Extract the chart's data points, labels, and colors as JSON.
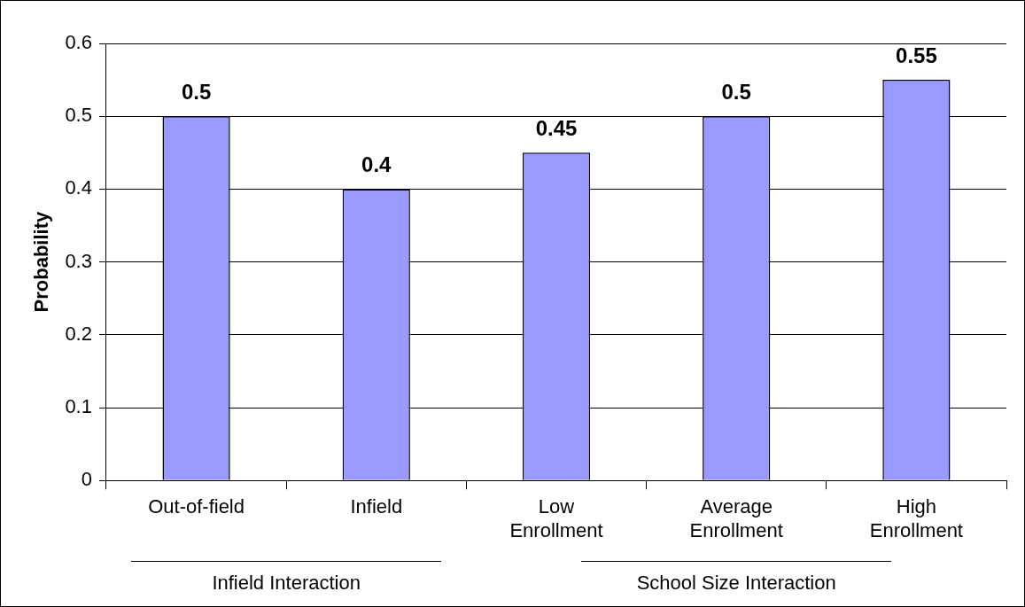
{
  "chart_data": {
    "type": "bar",
    "ylabel": "Probability",
    "categories": [
      "Out-of-field",
      "Infield",
      "Low Enrollment",
      "Average Enrollment",
      "High Enrollment"
    ],
    "values": [
      0.5,
      0.4,
      0.45,
      0.5,
      0.55
    ],
    "color": "#9999ff",
    "ylim": [
      0,
      0.6
    ],
    "yticks": [
      0,
      0.1,
      0.2,
      0.3,
      0.4,
      0.5,
      0.6
    ],
    "grid": "y",
    "data_labels": true,
    "legend": false,
    "annotations": [
      "Infield Interaction",
      "School Size Interaction"
    ]
  }
}
